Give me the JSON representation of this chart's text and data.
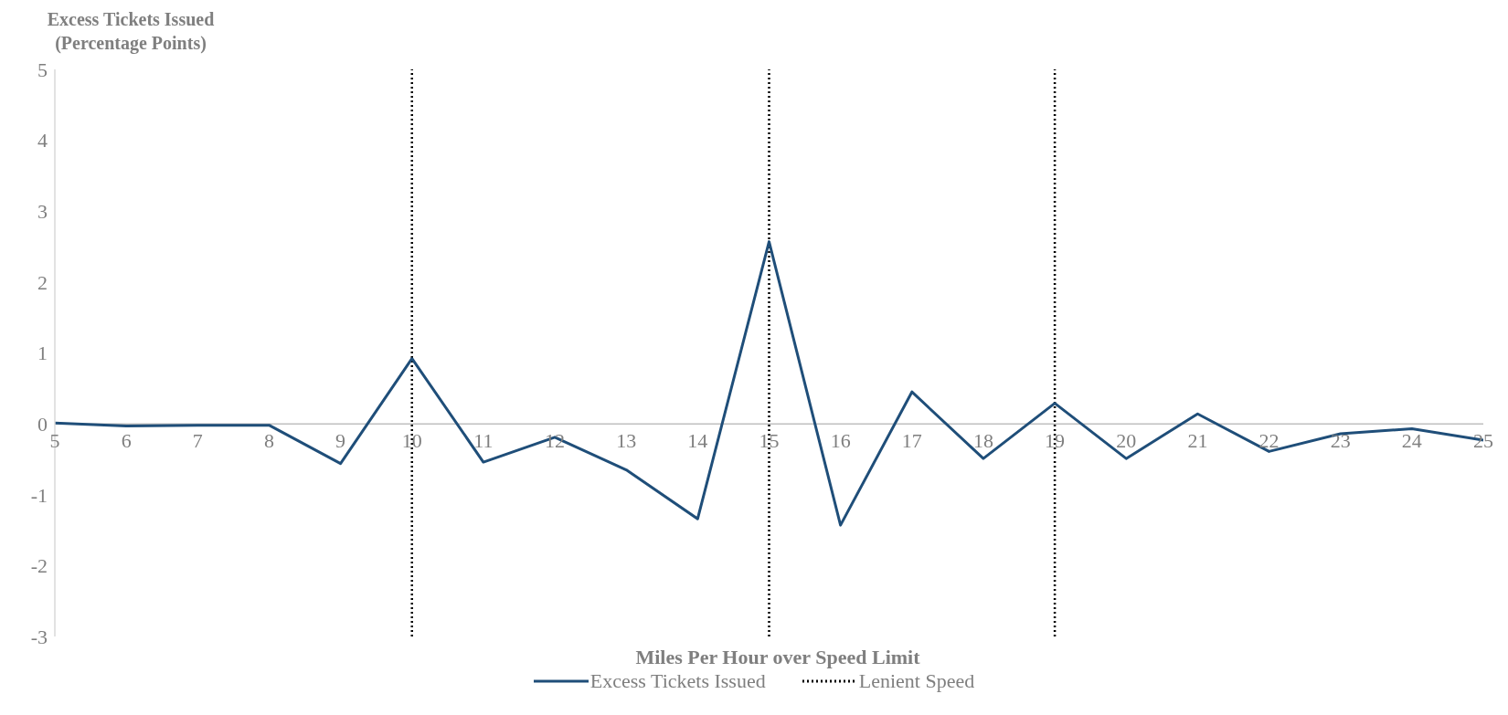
{
  "chart_data": {
    "type": "line",
    "ylabel": "Excess Tickets Issued (Percentage Points)",
    "xlabel": "Miles Per Hour over Speed Limit",
    "x": [
      5,
      6,
      7,
      8,
      9,
      10,
      11,
      12,
      13,
      14,
      15,
      16,
      17,
      18,
      19,
      20,
      21,
      22,
      23,
      24,
      25
    ],
    "series": [
      {
        "name": "Excess Tickets Issued",
        "color": "#1f4e79",
        "values": [
          0.01,
          -0.03,
          -0.02,
          -0.02,
          -0.56,
          0.92,
          -0.54,
          -0.19,
          -0.65,
          -1.34,
          2.57,
          -1.43,
          0.45,
          -0.49,
          0.29,
          -0.49,
          0.14,
          -0.39,
          -0.14,
          -0.07,
          -0.23
        ]
      }
    ],
    "xlim": [
      5,
      25
    ],
    "xticks": [
      5,
      6,
      7,
      8,
      9,
      10,
      11,
      12,
      13,
      14,
      15,
      16,
      17,
      18,
      19,
      20,
      21,
      22,
      23,
      24,
      25
    ],
    "ylim": [
      -3,
      5
    ],
    "yticks": [
      -3,
      -2,
      -1,
      0,
      1,
      2,
      3,
      4,
      5
    ],
    "ref_lines": [
      {
        "axis": "x",
        "value": 10,
        "label": "Lenient Speed",
        "color": "#000000",
        "line_style": "dotted"
      },
      {
        "axis": "x",
        "value": 15,
        "color": "#000000",
        "line_style": "dotted"
      },
      {
        "axis": "x",
        "value": 19,
        "color": "#000000",
        "line_style": "dotted"
      }
    ],
    "legend": "bottom",
    "marker": "none",
    "line_style": "solid"
  }
}
